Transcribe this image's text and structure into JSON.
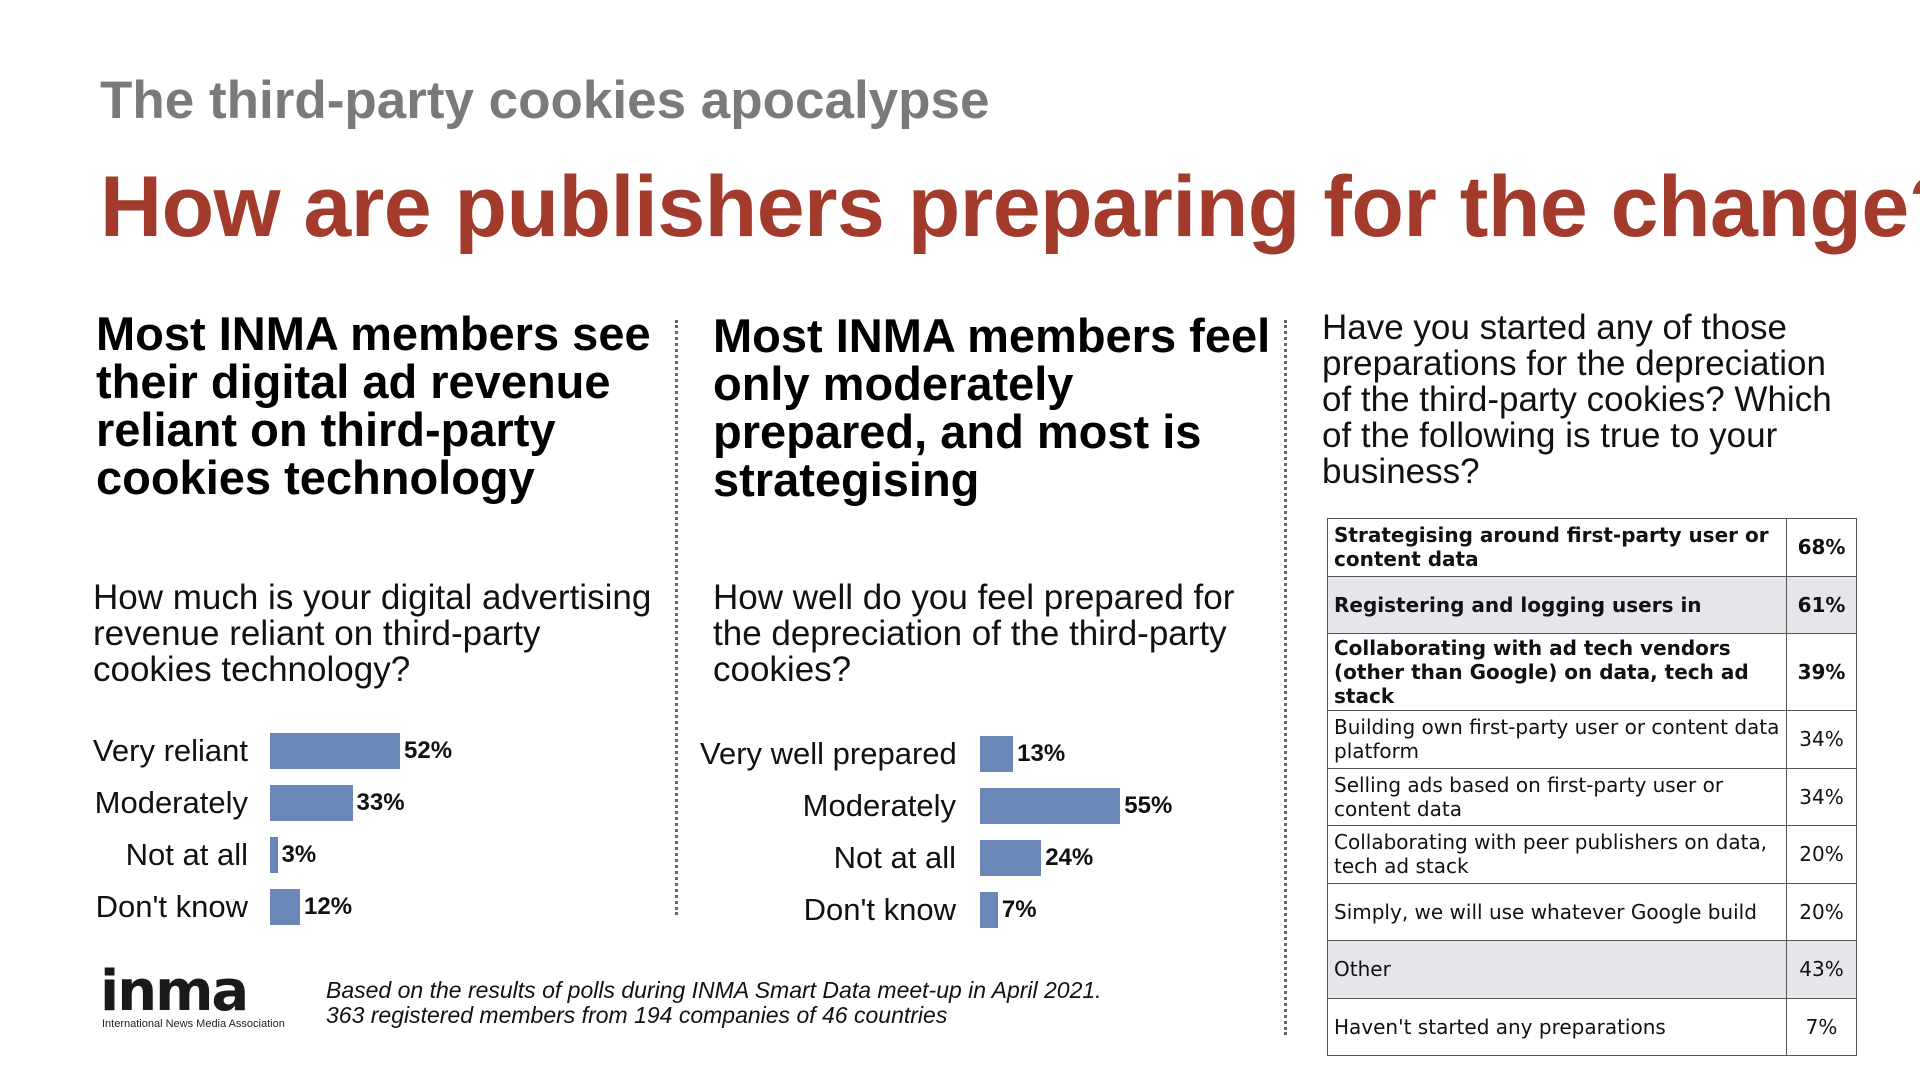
{
  "header": {
    "kicker": "The third-party cookies apocalypse",
    "headline": "How are publishers preparing for the change?"
  },
  "columns": [
    {
      "title": "Most INMA members see their digital ad revenue reliant on third-party cookies technology",
      "question": "How much is your digital advertising revenue reliant on third-party cookies technology?"
    },
    {
      "title": "Most INMA members feel only moderately prepared, and most is strategising",
      "question": "How well do you feel prepared for the depreciation of the third-party cookies?"
    },
    {
      "question": "Have you started any of those preparations for the depreciation of the third-party cookies? Which of the following is true to your business?"
    }
  ],
  "chart_data": [
    {
      "type": "bar",
      "orientation": "horizontal",
      "categories": [
        "Very reliant",
        "Moderately",
        "Not at all",
        "Don't know"
      ],
      "values": [
        52,
        33,
        3,
        12
      ],
      "value_labels": [
        "52%",
        "33%",
        "3%",
        "12%"
      ],
      "xlim": [
        0,
        100
      ],
      "bar_color": "#6a87b8"
    },
    {
      "type": "bar",
      "orientation": "horizontal",
      "categories": [
        "Very well prepared",
        "Moderately",
        "Not at all",
        "Don't know"
      ],
      "values": [
        13,
        55,
        24,
        7
      ],
      "value_labels": [
        "13%",
        "55%",
        "24%",
        "7%"
      ],
      "xlim": [
        0,
        100
      ],
      "bar_color": "#6a87b8"
    },
    {
      "type": "table",
      "rows": [
        {
          "option": "Strategising around first-party user or content data",
          "value": "68%"
        },
        {
          "option": "Registering and logging users in",
          "value": "61%"
        },
        {
          "option": "Collaborating with ad tech vendors (other than Google) on data, tech ad stack",
          "value": "39%"
        },
        {
          "option": "Building own first-party user or content data platform",
          "value": "34%"
        },
        {
          "option": "Selling ads based on first-party user or content data",
          "value": "34%"
        },
        {
          "option": "Collaborating with peer publishers on data, tech ad stack",
          "value": "20%"
        },
        {
          "option": "Simply, we will use whatever Google build",
          "value": "20%"
        },
        {
          "option": "Other",
          "value": "43%"
        },
        {
          "option": "Haven't started any preparations",
          "value": "7%"
        }
      ]
    }
  ],
  "footer": {
    "logo_text": "inma",
    "logo_subtitle": "International News Media Association",
    "note_line1": "Based on the results of polls during INMA Smart Data meet-up in April 2021.",
    "note_line2": "363 registered members from 194 companies of 46 countries"
  },
  "colors": {
    "headline": "#a23b2c",
    "kicker": "#7a7a7a",
    "bar": "#6a87b8",
    "table_shade": "#e5e6ea"
  }
}
